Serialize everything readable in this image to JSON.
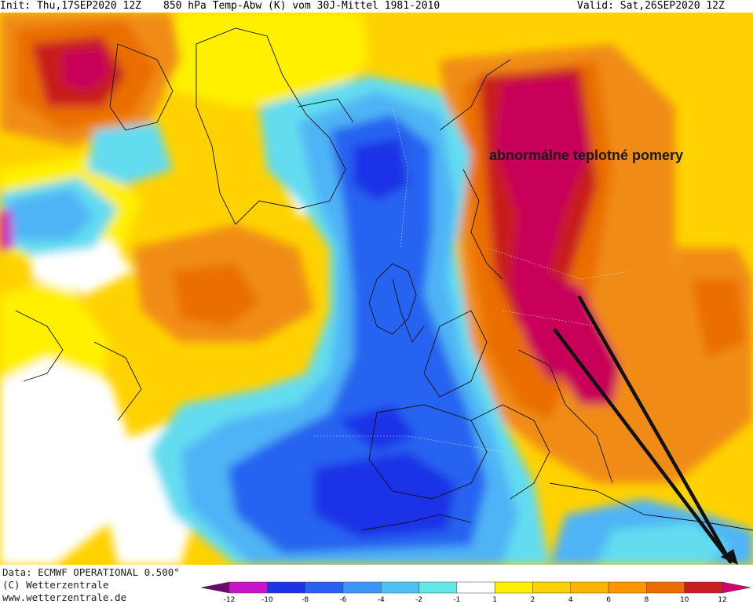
{
  "header": {
    "init_label": "Init: Thu,17SEP2020 12Z",
    "title": "850 hPa Temp-Abw (K) vom 30J-Mittel 1981-2010",
    "valid_label": "Valid: Sat,26SEP2020 12Z"
  },
  "annotation": {
    "text": "abnormálne teplotné pomery"
  },
  "footer": {
    "data_line": "Data: ECMWF OPERATIONAL 0.500°",
    "copyright_line": "(C) Wetterzentrale",
    "url_line": "www.wetterzentrale.de"
  },
  "legend": {
    "bins": [
      {
        "color": "#6a0a6a"
      },
      {
        "color": "#c814c8"
      },
      {
        "color": "#1e32e6"
      },
      {
        "color": "#2860f0"
      },
      {
        "color": "#3c96f5"
      },
      {
        "color": "#50c0f5"
      },
      {
        "color": "#64e6e6"
      },
      {
        "color": "#ffffff"
      },
      {
        "color": "#fff000"
      },
      {
        "color": "#ffd200"
      },
      {
        "color": "#ffb400"
      },
      {
        "color": "#ff9600"
      },
      {
        "color": "#ea6e00"
      },
      {
        "color": "#c81e1e"
      },
      {
        "color": "#d2006e"
      }
    ],
    "ticks": [
      "-12",
      "-10",
      "-8",
      "-6",
      "-4",
      "-2",
      "-1",
      "1",
      "2",
      "4",
      "6",
      "8",
      "10",
      "12"
    ]
  },
  "colors": {
    "deep_warm": "#b4143c",
    "magenta": "#c8005a",
    "orange": "#f08c14",
    "yellow": "#ffd200",
    "blue": "#2864f0",
    "light_blue": "#50b4f5",
    "cyan": "#64dcf0"
  },
  "icons": {
    "arrows": "arrow-icon"
  }
}
